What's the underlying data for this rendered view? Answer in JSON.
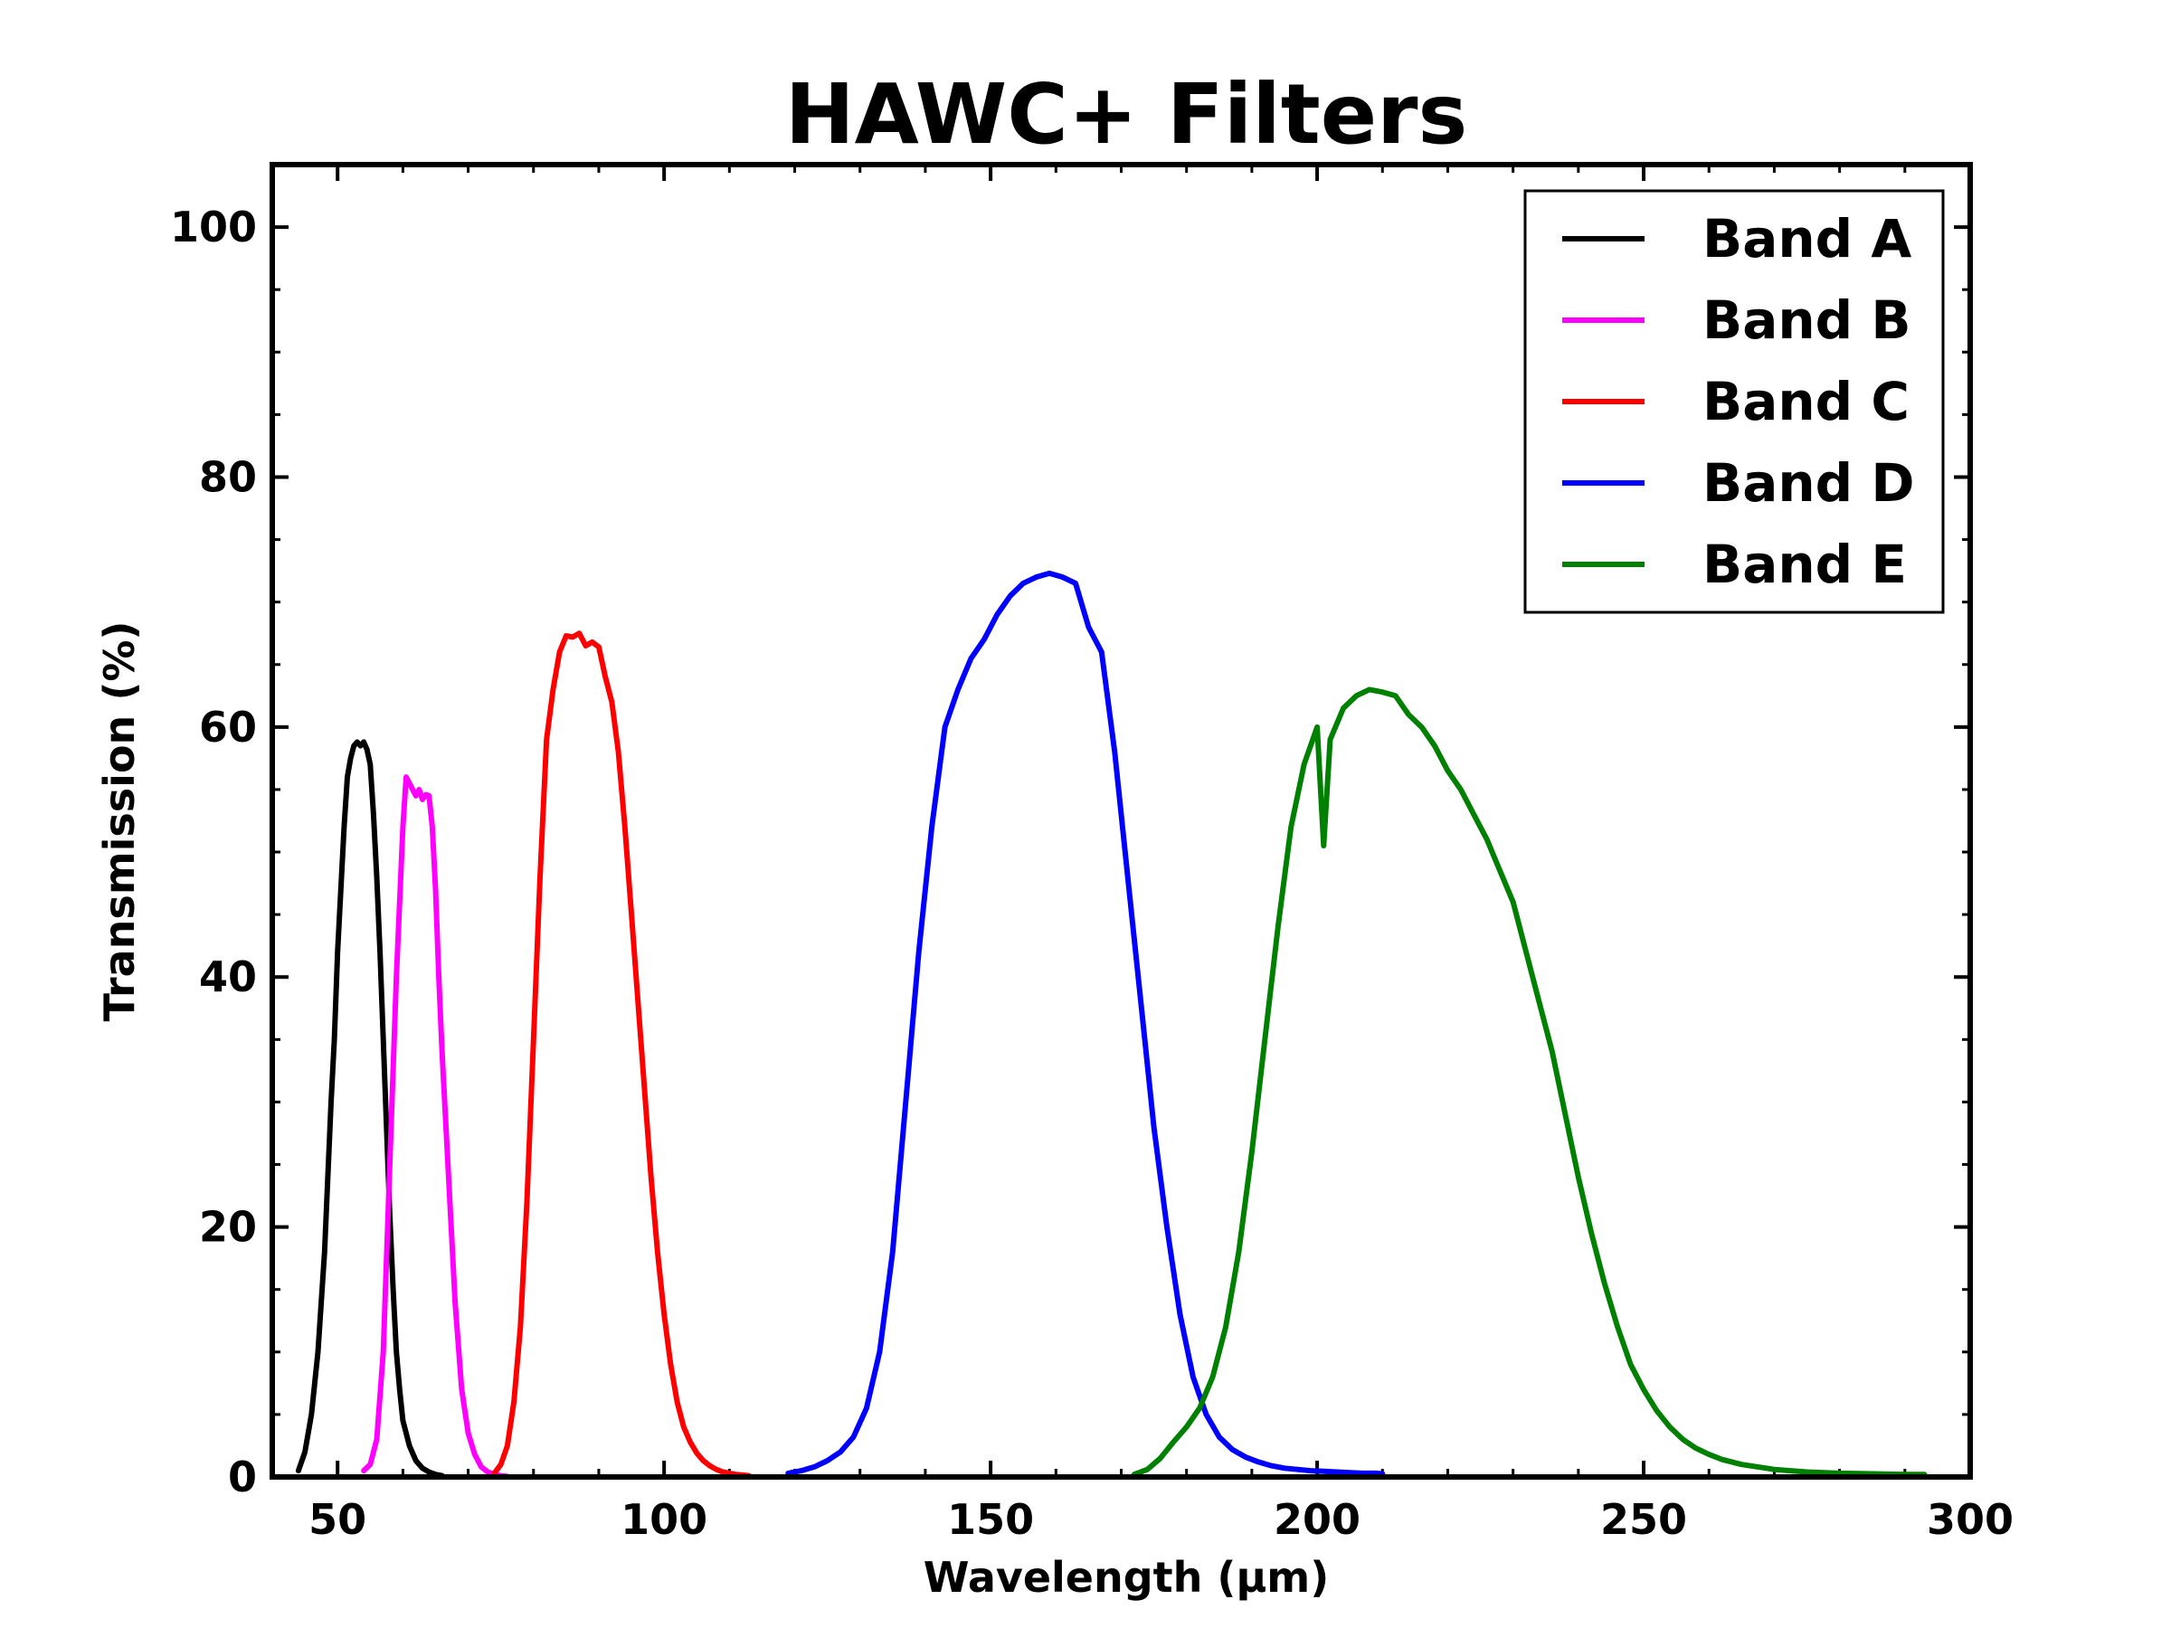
{
  "chart_data": {
    "type": "line",
    "title": "HAWC+ Filters",
    "xlabel": "Wavelength (μm)",
    "ylabel": "Transmission (%)",
    "xlim": [
      40,
      300
    ],
    "ylim": [
      0,
      105
    ],
    "xticks": [
      50,
      100,
      150,
      200,
      250,
      300
    ],
    "yticks": [
      0,
      20,
      40,
      60,
      80,
      100
    ],
    "xtick_labels": [
      "50",
      "100",
      "150",
      "200",
      "250",
      "300"
    ],
    "ytick_labels": [
      "0",
      "20",
      "40",
      "60",
      "80",
      "100"
    ],
    "grid": false,
    "legend_position": "top-right",
    "series": [
      {
        "name": "Band A",
        "color": "#000000",
        "x": [
          44,
          45,
          46,
          47,
          48,
          49,
          49.5,
          50,
          50.5,
          51,
          51.5,
          52,
          52.5,
          53,
          53.5,
          54,
          54.5,
          55,
          55.5,
          56,
          56.5,
          57,
          57.5,
          58,
          58.5,
          59,
          59.5,
          60,
          61,
          62,
          63,
          64,
          65,
          66
        ],
        "y": [
          0.5,
          2,
          5,
          10,
          18,
          30,
          35,
          42,
          47,
          52,
          56,
          57.5,
          58.5,
          58.8,
          58.5,
          58.8,
          58.2,
          57,
          53,
          48,
          42,
          35,
          28,
          21,
          15,
          10,
          7,
          4.5,
          2.5,
          1.3,
          0.7,
          0.4,
          0.2,
          0.1
        ]
      },
      {
        "name": "Band B",
        "color": "#ff00ff",
        "x": [
          54,
          55,
          56,
          57,
          58,
          59,
          60,
          60.5,
          61,
          61.5,
          62,
          62.5,
          63,
          63.5,
          64,
          64.5,
          65,
          65.5,
          66,
          67,
          68,
          69,
          70,
          71,
          72,
          73,
          74,
          75,
          76
        ],
        "y": [
          0.5,
          1,
          3,
          10,
          25,
          40,
          52,
          56,
          55.5,
          55,
          54.5,
          55,
          54.2,
          54.6,
          54.5,
          52,
          47,
          40,
          34,
          24,
          14,
          7,
          3.5,
          1.8,
          0.8,
          0.4,
          0.2,
          0.1,
          0.05
        ]
      },
      {
        "name": "Band C",
        "color": "#ff0000",
        "x": [
          74,
          75,
          76,
          77,
          78,
          79,
          80,
          81,
          82,
          83,
          84,
          85,
          86,
          87,
          88,
          89,
          90,
          91,
          92,
          93,
          94,
          95,
          96,
          97,
          98,
          99,
          100,
          101,
          102,
          103,
          104,
          105,
          106,
          107,
          108,
          109,
          110,
          111,
          112,
          113
        ],
        "y": [
          0.3,
          1,
          2.5,
          6,
          12,
          22,
          35,
          48,
          59,
          63,
          66,
          67.3,
          67.2,
          67.5,
          66.5,
          66.8,
          66.4,
          64,
          62,
          58,
          52,
          45,
          38,
          31,
          24,
          18,
          13,
          9,
          6,
          4,
          2.8,
          1.9,
          1.3,
          0.9,
          0.6,
          0.4,
          0.3,
          0.2,
          0.15,
          0.1
        ]
      },
      {
        "name": "Band D",
        "color": "#0000ff",
        "x": [
          119,
          121,
          123,
          125,
          127,
          129,
          131,
          133,
          135,
          137,
          139,
          141,
          143,
          145,
          147,
          149,
          151,
          153,
          155,
          157,
          159,
          161,
          163,
          165,
          166,
          167,
          169,
          171,
          173,
          175,
          177,
          179,
          181,
          183,
          185,
          187,
          189,
          191,
          193,
          195,
          197,
          199,
          201,
          203,
          205,
          207,
          209,
          210
        ],
        "y": [
          0.3,
          0.5,
          0.8,
          1.3,
          2,
          3.2,
          5.5,
          10,
          18,
          30,
          42,
          52,
          60,
          63,
          65.5,
          67,
          69,
          70.5,
          71.5,
          72,
          72.3,
          72,
          71.5,
          68,
          67,
          66,
          58,
          48,
          38,
          28,
          20,
          13,
          8,
          5,
          3.2,
          2.2,
          1.6,
          1.2,
          0.9,
          0.7,
          0.6,
          0.5,
          0.45,
          0.4,
          0.35,
          0.3,
          0.3,
          0.25
        ]
      },
      {
        "name": "Band E",
        "color": "#008000",
        "x": [
          172,
          174,
          176,
          178,
          180,
          182,
          184,
          186,
          188,
          190,
          192,
          194,
          196,
          198,
          200,
          201,
          202,
          204,
          206,
          208,
          210,
          212,
          214,
          216,
          218,
          220,
          222,
          224,
          226,
          228,
          230,
          232,
          234,
          236,
          238,
          240,
          242,
          244,
          246,
          248,
          250,
          252,
          254,
          256,
          258,
          260,
          262,
          265,
          270,
          275,
          280,
          285,
          290,
          293
        ],
        "y": [
          0.2,
          0.6,
          1.5,
          2.8,
          4,
          5.5,
          8,
          12,
          18,
          26,
          35,
          44,
          52,
          57,
          60,
          50.5,
          59,
          61.5,
          62.5,
          63,
          62.8,
          62.5,
          61,
          60,
          58.5,
          56.5,
          55,
          53,
          51,
          48.5,
          46,
          42,
          38,
          34,
          29,
          24,
          19.5,
          15.5,
          12,
          9,
          7,
          5.3,
          4,
          3,
          2.3,
          1.8,
          1.4,
          1,
          0.6,
          0.4,
          0.3,
          0.25,
          0.2,
          0.2
        ]
      }
    ]
  }
}
